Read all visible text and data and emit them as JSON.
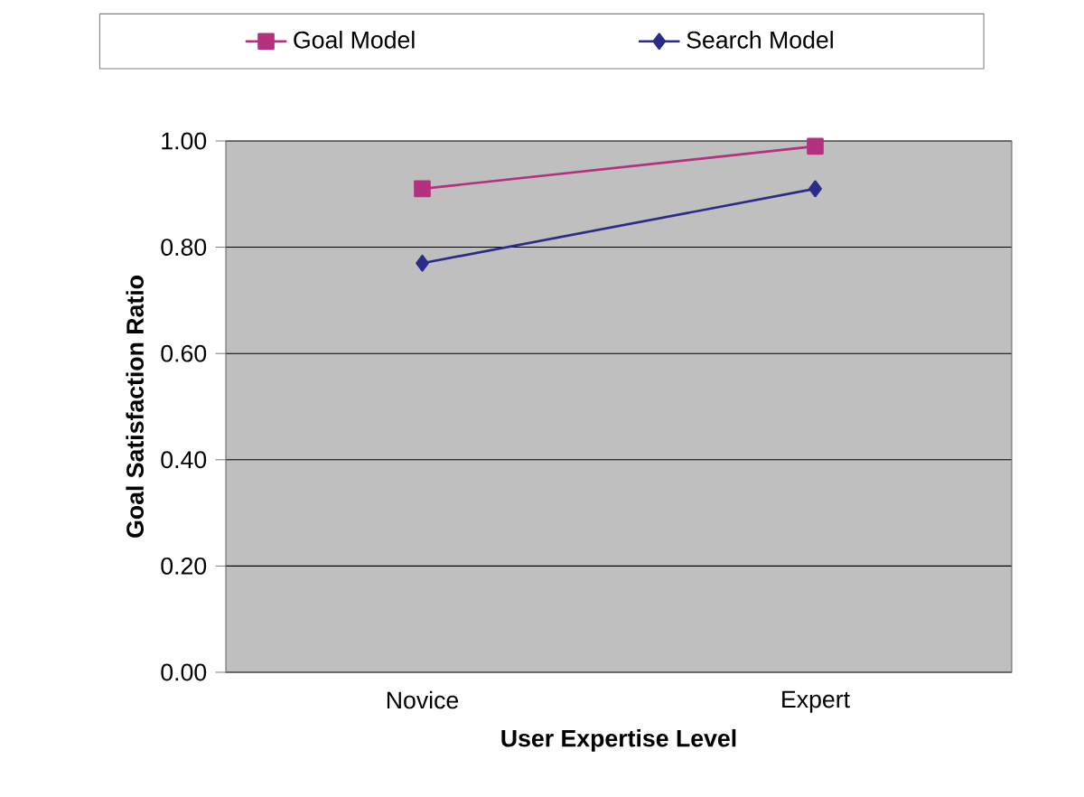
{
  "chart_data": {
    "type": "line",
    "xlabel": "User Expertise Level",
    "ylabel": "Goal Satisfaction Ratio",
    "categories": [
      "Novice",
      "Expert"
    ],
    "series": [
      {
        "name": "Goal Model",
        "color": "#b5307f",
        "marker": "square",
        "values": [
          0.91,
          0.99
        ]
      },
      {
        "name": "Search Model",
        "color": "#2b2b88",
        "marker": "diamond",
        "values": [
          0.77,
          0.91
        ]
      }
    ],
    "ylim": [
      0,
      1
    ],
    "yticks": [
      {
        "value": 0,
        "label": "0.00"
      },
      {
        "value": 0.2,
        "label": "0.20"
      },
      {
        "value": 0.4,
        "label": "0.40"
      },
      {
        "value": 0.6,
        "label": "0.60"
      },
      {
        "value": 0.8,
        "label": "0.80"
      },
      {
        "value": 1,
        "label": "1.00"
      }
    ],
    "grid": "y",
    "legend": "top",
    "line_style": "solid"
  }
}
